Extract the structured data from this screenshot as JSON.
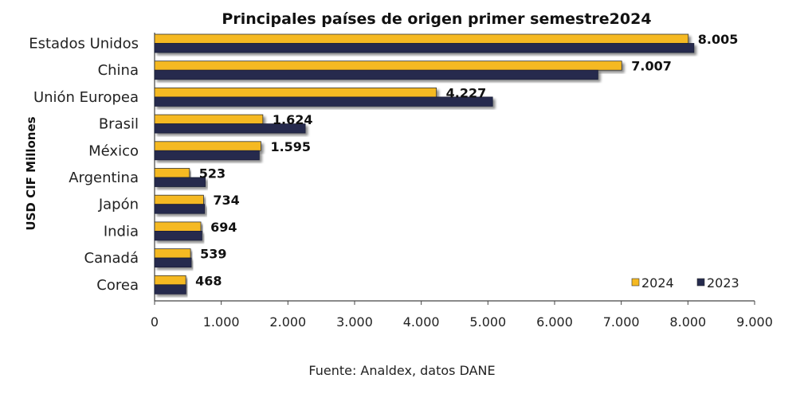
{
  "chart_data": {
    "type": "bar",
    "orientation": "horizontal",
    "title": "Principales países de origen primer semestre2024",
    "ylabel": "USD CIF Millones",
    "xlim": [
      0,
      9000
    ],
    "xticks": [
      0,
      1000,
      2000,
      3000,
      4000,
      5000,
      6000,
      7000,
      8000,
      9000
    ],
    "xtick_labels": [
      "0",
      "1.000",
      "2.000",
      "3.000",
      "4.000",
      "5.000",
      "6.000",
      "7.000",
      "8.000",
      "9.000"
    ],
    "categories": [
      "Estados Unidos",
      "China",
      "Unión Europea",
      "Brasil",
      "México",
      "Argentina",
      "Japón",
      "India",
      "Canadá",
      "Corea"
    ],
    "series": [
      {
        "name": "2024",
        "color": "#F5B921",
        "values": [
          8005,
          7007,
          4227,
          1624,
          1595,
          523,
          734,
          694,
          539,
          468
        ],
        "labels": [
          "8.005",
          "7.007",
          "4.227",
          "1.624",
          "1.595",
          "523",
          "734",
          "694",
          "539",
          "468"
        ]
      },
      {
        "name": "2023",
        "color": "#252B4E",
        "values": [
          8090,
          6650,
          5070,
          2260,
          1570,
          760,
          750,
          710,
          550,
          470
        ]
      }
    ],
    "legend": "bottom-right",
    "grid": false
  },
  "source": "Fuente: Analdex, datos DANE"
}
